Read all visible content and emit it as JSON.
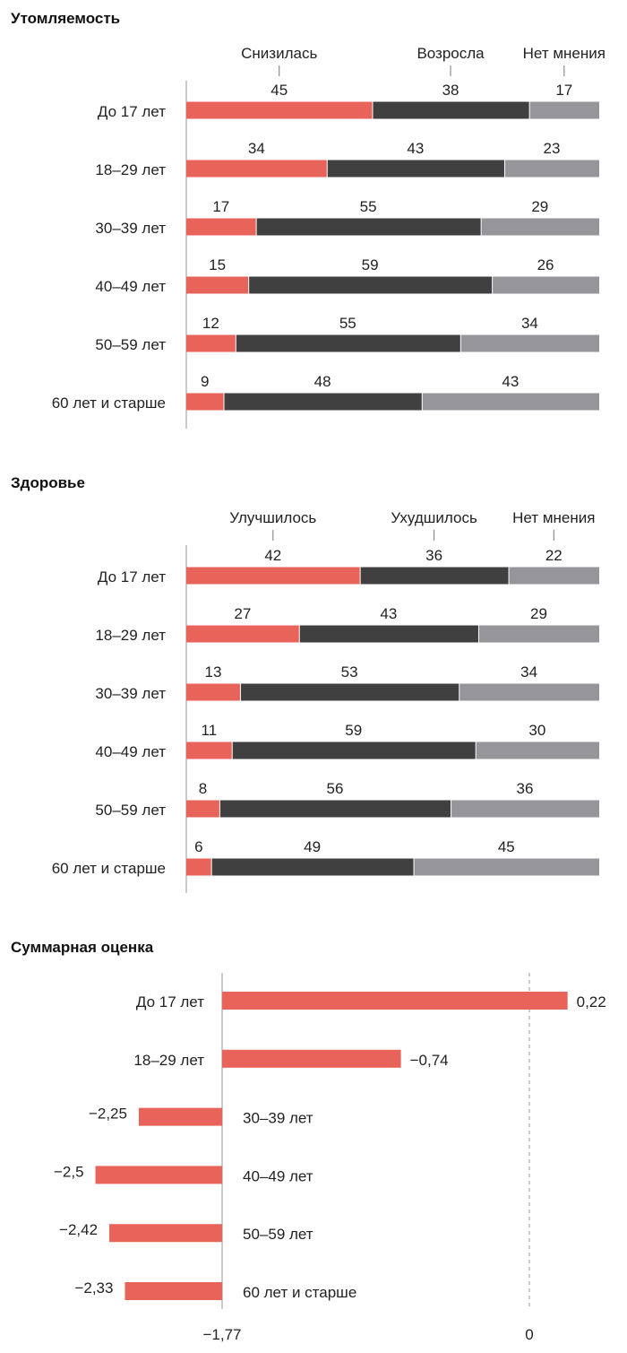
{
  "colors": {
    "red": "#e8635a",
    "dark": "#404040",
    "gray": "#96969a"
  },
  "chart_data": [
    {
      "type": "bar",
      "stacked": true,
      "orientation": "horizontal",
      "title": "Утомляемость",
      "categories": [
        "До 17 лет",
        "18–29 лет",
        "30–39 лет",
        "40–49 лет",
        "50–59 лет",
        "60 лет и старше"
      ],
      "series": [
        {
          "name": "Снизилась",
          "color": "red",
          "values": [
            45,
            34,
            17,
            15,
            12,
            9
          ]
        },
        {
          "name": "Возросла",
          "color": "dark",
          "values": [
            38,
            43,
            55,
            59,
            55,
            48
          ]
        },
        {
          "name": "Нет мнения",
          "color": "gray",
          "values": [
            17,
            23,
            29,
            26,
            34,
            43
          ]
        }
      ],
      "legend": "top"
    },
    {
      "type": "bar",
      "stacked": true,
      "orientation": "horizontal",
      "title": "Здоровье",
      "categories": [
        "До 17 лет",
        "18–29 лет",
        "30–39 лет",
        "40–49 лет",
        "50–59 лет",
        "60 лет и старше"
      ],
      "series": [
        {
          "name": "Улучшилось",
          "color": "red",
          "values": [
            42,
            27,
            13,
            11,
            8,
            6
          ]
        },
        {
          "name": "Ухудшилось",
          "color": "dark",
          "values": [
            36,
            43,
            53,
            59,
            56,
            49
          ]
        },
        {
          "name": "Нет мнения",
          "color": "gray",
          "values": [
            22,
            29,
            34,
            30,
            36,
            45
          ]
        }
      ],
      "legend": "top"
    },
    {
      "type": "bar",
      "orientation": "horizontal",
      "title": "Суммарная оценка",
      "categories": [
        "До 17 лет",
        "18–29 лет",
        "30–39 лет",
        "40–49 лет",
        "50–59 лет",
        "60 лет и старше"
      ],
      "values": [
        0.22,
        -0.74,
        -2.25,
        -2.5,
        -2.42,
        -2.33
      ],
      "value_labels": [
        "0,22",
        "−0,74",
        "−2,25",
        "−2,5",
        "−2,42",
        "−2,33"
      ],
      "baseline": -1.77,
      "baseline_label": "−1,77",
      "reference": 0,
      "reference_label": "0",
      "xlim": [
        -2.5,
        0.22
      ]
    }
  ]
}
